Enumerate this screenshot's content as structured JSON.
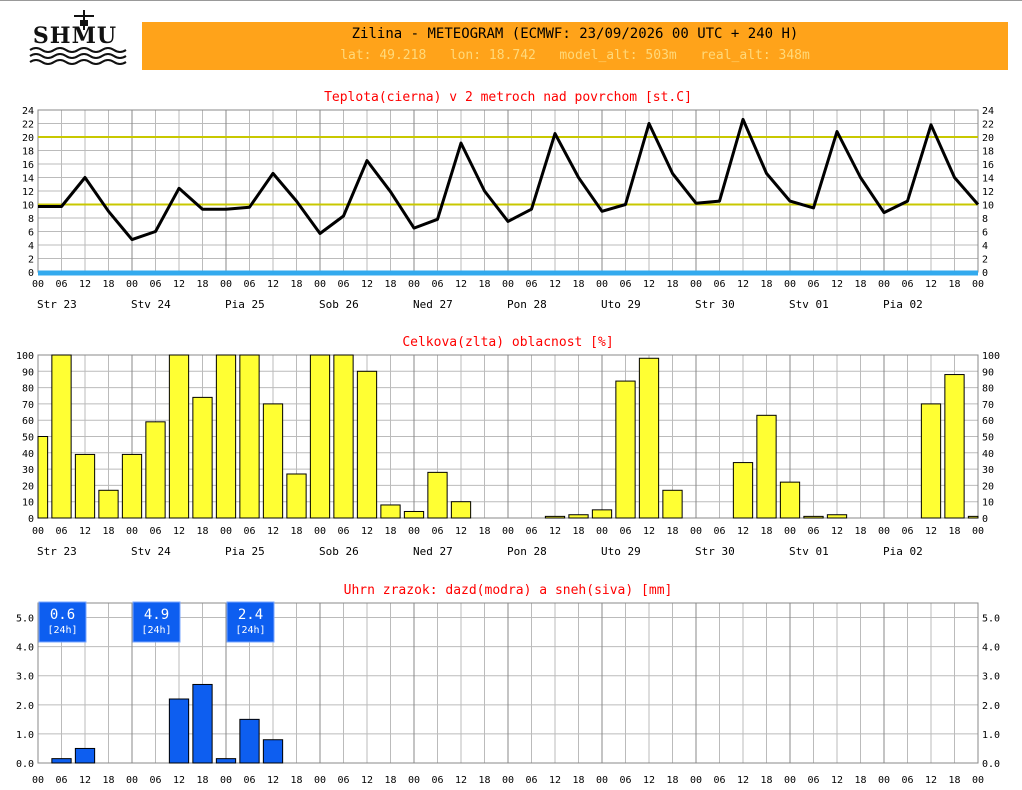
{
  "header": {
    "logo_text": "SHMU",
    "title": "Zilina - METEOGRAM (ECMWF: 23/09/2026 00 UTC + 240 H)",
    "lat": "lat: 49.218",
    "lon": "lon: 18.742",
    "model_alt": "model_alt: 503m",
    "real_alt": "real_alt: 348m"
  },
  "colors": {
    "orange": "#ffa31a",
    "yellow_line": "#c8c800",
    "bar_yellow": "#ffff33",
    "bar_blue": "#0d5ef0",
    "title_red": "#ff0000",
    "axis_blue": "#33aaee"
  },
  "time_axis": {
    "hour_labels": [
      "00",
      "06",
      "12",
      "18",
      "00",
      "06",
      "12",
      "18",
      "00",
      "06",
      "12",
      "18",
      "00",
      "06",
      "12",
      "18",
      "00",
      "06",
      "12",
      "18",
      "00",
      "06",
      "12",
      "18",
      "00",
      "06",
      "12",
      "18",
      "00",
      "06",
      "12",
      "18",
      "00",
      "06",
      "12",
      "18",
      "00",
      "06",
      "12",
      "18",
      "00"
    ],
    "day_labels": [
      "Str 23",
      "Stv 24",
      "Pia 25",
      "Sob 26",
      "Ned 27",
      "Pon 28",
      "Uto 29",
      "Str 30",
      "Stv 01",
      "Pia 02"
    ]
  },
  "chart_data": [
    {
      "type": "line",
      "title": "Teplota(cierna) v 2 metroch nad povrchom [st.C]",
      "ylim": [
        0,
        24
      ],
      "yticks": [
        "0",
        "2",
        "4",
        "6",
        "8",
        "10",
        "12",
        "14",
        "16",
        "18",
        "20",
        "22",
        "24"
      ],
      "reference_lines": [
        10,
        20
      ],
      "grid": true,
      "x_steps_hours": 6,
      "values": [
        9.7,
        9.7,
        14.0,
        9.0,
        4.8,
        6.0,
        12.4,
        9.3,
        9.3,
        9.6,
        14.6,
        10.5,
        5.7,
        8.3,
        16.5,
        11.9,
        6.5,
        7.8,
        19.1,
        12.0,
        7.5,
        9.3,
        20.5,
        14.0,
        9.0,
        10.0,
        22.0,
        14.6,
        10.2,
        10.5,
        22.6,
        14.6,
        10.5,
        9.5,
        20.8,
        14.0,
        8.8,
        10.5,
        21.8,
        14.0,
        10.0
      ]
    },
    {
      "type": "bar",
      "title": "Celkova(zlta) oblacnost [%]",
      "ylim": [
        0,
        100
      ],
      "yticks": [
        "0",
        "10",
        "20",
        "30",
        "40",
        "50",
        "60",
        "70",
        "80",
        "90",
        "100"
      ],
      "grid": true,
      "x_steps_hours": 6,
      "values": [
        50,
        100,
        39,
        17,
        39,
        59,
        100,
        74,
        100,
        100,
        70,
        27,
        100,
        100,
        90,
        8,
        4,
        28,
        10,
        0,
        0,
        0,
        1,
        2,
        5,
        84,
        98,
        17,
        0,
        0,
        34,
        63,
        22,
        1,
        2,
        0,
        0,
        0,
        70,
        88,
        1
      ]
    },
    {
      "type": "bar",
      "title": "Uhrn zrazok: dazd(modra) a sneh(siva) [mm]",
      "ylim": [
        0,
        5.5
      ],
      "yticks": [
        "0.0",
        "1.0",
        "2.0",
        "3.0",
        "4.0",
        "5.0"
      ],
      "grid": true,
      "x_steps_hours": 6,
      "values": [
        0,
        0.15,
        0.5,
        0,
        0,
        0,
        2.2,
        2.7,
        0.15,
        1.5,
        0.8,
        0,
        0,
        0,
        0,
        0,
        0,
        0,
        0,
        0,
        0,
        0,
        0,
        0,
        0,
        0,
        0,
        0,
        0,
        0,
        0,
        0,
        0,
        0,
        0,
        0,
        0,
        0,
        0,
        0,
        0
      ],
      "daily_totals": [
        {
          "value": "0.6",
          "note": "[24h]"
        },
        {
          "value": "4.9",
          "note": "[24h]"
        },
        {
          "value": "2.4",
          "note": "[24h]"
        }
      ]
    }
  ]
}
